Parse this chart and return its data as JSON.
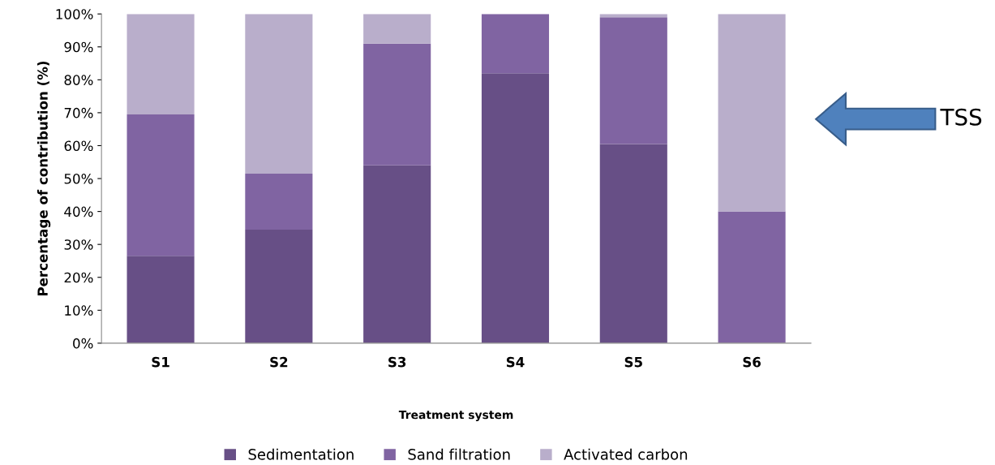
{
  "chart_data": {
    "type": "bar",
    "stacked": true,
    "xlabel": "Treatment system",
    "ylabel": "Percentage of contribution (%)",
    "categories": [
      "S1",
      "S2",
      "S3",
      "S4",
      "S5",
      "S6"
    ],
    "series": [
      {
        "name": "Sedimentation",
        "color": "#674f86",
        "values": [
          26.5,
          34.5,
          54,
          82,
          60.5,
          0
        ]
      },
      {
        "name": "Sand filtration",
        "color": "#8064a2",
        "values": [
          43,
          17,
          37,
          18,
          38.5,
          40
        ]
      },
      {
        "name": "Activated carbon",
        "color": "#b9aecb",
        "values": [
          30.5,
          48.5,
          9,
          0,
          1,
          60
        ]
      }
    ],
    "ylim": [
      0,
      100
    ],
    "yticks": [
      {
        "value": 0,
        "label": "0%"
      },
      {
        "value": 10,
        "label": "10%"
      },
      {
        "value": 20,
        "label": "20%"
      },
      {
        "value": 30,
        "label": "30%"
      },
      {
        "value": 40,
        "label": "40%"
      },
      {
        "value": 50,
        "label": "50%"
      },
      {
        "value": 60,
        "label": "60%"
      },
      {
        "value": 70,
        "label": "70%"
      },
      {
        "value": 80,
        "label": "80%"
      },
      {
        "value": 90,
        "label": "90%"
      },
      {
        "value": 100,
        "label": "100%"
      }
    ],
    "grid": false,
    "legend": "bottom",
    "annotations": [
      "TSS"
    ]
  }
}
